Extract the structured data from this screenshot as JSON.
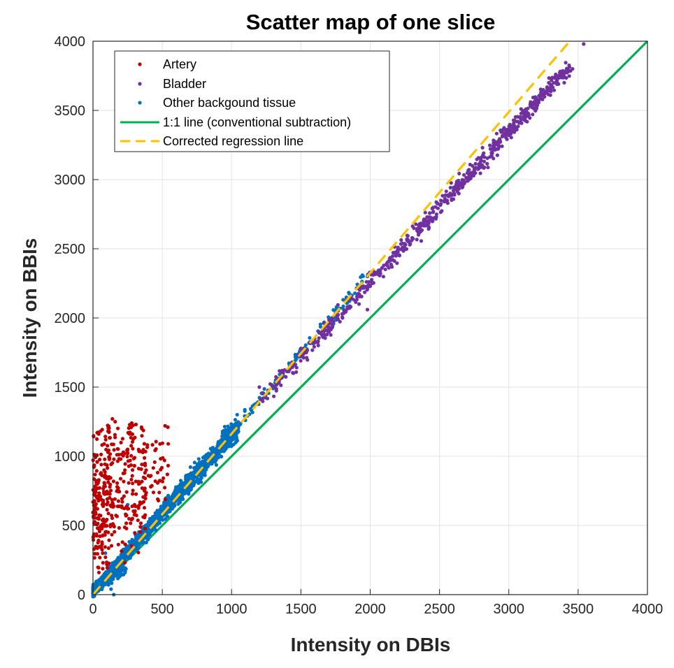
{
  "chart_data": {
    "type": "scatter",
    "title": "Scatter map of one slice",
    "xlabel": "Intensity on DBIs",
    "ylabel": "Intensity on BBIs",
    "xlim": [
      0,
      4000
    ],
    "ylim": [
      0,
      4000
    ],
    "xticks": [
      0,
      500,
      1000,
      1500,
      2000,
      2500,
      3000,
      3500,
      4000
    ],
    "yticks": [
      0,
      500,
      1000,
      1500,
      2000,
      2500,
      3000,
      3500,
      4000
    ],
    "grid": true,
    "legend_position": "top-left",
    "series": [
      {
        "name": "Artery",
        "kind": "points",
        "color": "#c00000",
        "approx_count": 450,
        "x_range": [
          0,
          550
        ],
        "y_range": [
          150,
          1280
        ],
        "sample_points": [
          [
            60,
            940
          ],
          [
            140,
            1270
          ],
          [
            160,
            1250
          ],
          [
            280,
            1240
          ],
          [
            310,
            1230
          ],
          [
            350,
            1210
          ],
          [
            520,
            1220
          ],
          [
            540,
            1210
          ],
          [
            20,
            1000
          ],
          [
            30,
            960
          ],
          [
            80,
            900
          ],
          [
            100,
            850
          ],
          [
            200,
            980
          ],
          [
            250,
            1050
          ],
          [
            300,
            990
          ],
          [
            120,
            700
          ],
          [
            150,
            640
          ],
          [
            250,
            620
          ],
          [
            300,
            650
          ],
          [
            400,
            860
          ],
          [
            450,
            820
          ],
          [
            90,
            500
          ],
          [
            110,
            450
          ],
          [
            60,
            350
          ],
          [
            70,
            300
          ],
          [
            40,
            820
          ],
          [
            180,
            760
          ],
          [
            230,
            900
          ],
          [
            330,
            800
          ],
          [
            380,
            720
          ]
        ]
      },
      {
        "name": "Bladder",
        "kind": "points",
        "color": "#7030a0",
        "approx_count": 900,
        "x_range": [
          1200,
          3550
        ],
        "y_range": [
          1500,
          4000
        ],
        "sample_points": [
          [
            1200,
            1500
          ],
          [
            1500,
            1780
          ],
          [
            1800,
            2000
          ],
          [
            2000,
            2230
          ],
          [
            2200,
            2480
          ],
          [
            2400,
            2700
          ],
          [
            2600,
            2920
          ],
          [
            2800,
            3140
          ],
          [
            3000,
            3320
          ],
          [
            3200,
            3520
          ],
          [
            3300,
            3610
          ],
          [
            3400,
            3700
          ],
          [
            3460,
            3800
          ],
          [
            3540,
            3980
          ],
          [
            1980,
            2060
          ]
        ]
      },
      {
        "name": "Other backgound tissue",
        "kind": "points",
        "color": "#0070c0",
        "approx_count": 3000,
        "x_range": [
          0,
          2000
        ],
        "y_range": [
          0,
          2300
        ],
        "sample_points": [
          [
            0,
            0
          ],
          [
            100,
            110
          ],
          [
            200,
            240
          ],
          [
            300,
            350
          ],
          [
            400,
            470
          ],
          [
            500,
            580
          ],
          [
            600,
            700
          ],
          [
            700,
            800
          ],
          [
            800,
            930
          ],
          [
            900,
            1030
          ],
          [
            1000,
            1130
          ],
          [
            1100,
            1260
          ],
          [
            1300,
            1490
          ],
          [
            1600,
            1850
          ],
          [
            1850,
            2120
          ],
          [
            1980,
            2300
          ],
          [
            150,
            0
          ],
          [
            130,
            40
          ],
          [
            90,
            300
          ],
          [
            250,
            650
          ]
        ]
      },
      {
        "name": "1:1 line (conventional subtraction)",
        "kind": "line",
        "style": "solid",
        "color": "#00b050",
        "x": [
          0,
          4000
        ],
        "y": [
          0,
          4000
        ]
      },
      {
        "name": "Corrected regression line",
        "kind": "line",
        "style": "dashed",
        "color": "#ffc000",
        "x": [
          0,
          3440
        ],
        "y": [
          0,
          4000
        ]
      }
    ]
  }
}
